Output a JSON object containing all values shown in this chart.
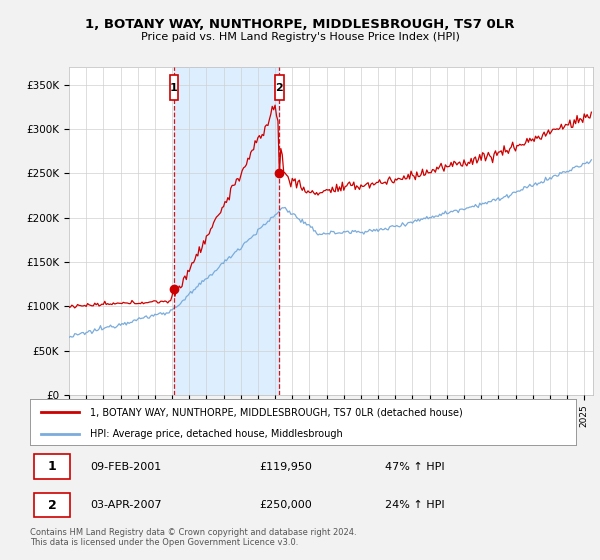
{
  "title": "1, BOTANY WAY, NUNTHORPE, MIDDLESBROUGH, TS7 0LR",
  "subtitle": "Price paid vs. HM Land Registry's House Price Index (HPI)",
  "ylabel_ticks": [
    "£0",
    "£50K",
    "£100K",
    "£150K",
    "£200K",
    "£250K",
    "£300K",
    "£350K"
  ],
  "ytick_values": [
    0,
    50000,
    100000,
    150000,
    200000,
    250000,
    300000,
    350000
  ],
  "ylim": [
    0,
    370000
  ],
  "xlim_start": 1995.0,
  "xlim_end": 2025.5,
  "red_line_color": "#cc0000",
  "blue_line_color": "#7aacdc",
  "shade_color": "#ddeeff",
  "vline_color": "#cc0000",
  "sale1_x": 2001.11,
  "sale1_y": 119950,
  "sale1_label": "1",
  "sale1_date": "09-FEB-2001",
  "sale1_price": "£119,950",
  "sale1_hpi": "47% ↑ HPI",
  "sale2_x": 2007.25,
  "sale2_y": 250000,
  "sale2_label": "2",
  "sale2_date": "03-APR-2007",
  "sale2_price": "£250,000",
  "sale2_hpi": "24% ↑ HPI",
  "legend_label_red": "1, BOTANY WAY, NUNTHORPE, MIDDLESBROUGH, TS7 0LR (detached house)",
  "legend_label_blue": "HPI: Average price, detached house, Middlesbrough",
  "footer": "Contains HM Land Registry data © Crown copyright and database right 2024.\nThis data is licensed under the Open Government Licence v3.0.",
  "background_color": "#f2f2f2",
  "plot_bg_color": "#ffffff"
}
